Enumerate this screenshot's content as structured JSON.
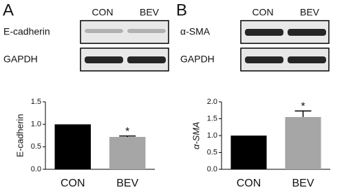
{
  "blot_panels": [
    {
      "label": "A",
      "lanes": [
        "CON",
        "BEV"
      ],
      "rows": [
        "E-cadherin",
        "GAPDH"
      ]
    },
    {
      "label": "B",
      "lanes": [
        "CON",
        "BEV"
      ],
      "rows": [
        "α-SMA",
        "GAPDH"
      ]
    }
  ],
  "chart_data": [
    {
      "type": "bar",
      "y_label": "E-cadherin",
      "categories": [
        "CON",
        "BEV"
      ],
      "values": [
        1.0,
        0.72
      ],
      "errors": [
        null,
        0.02
      ],
      "colors": [
        "#000000",
        "#a6a6a6"
      ],
      "annotations": [
        null,
        "*"
      ],
      "ylim": [
        0,
        1.5
      ],
      "yticks": [
        {
          "value": 0,
          "label": "0.0"
        },
        0.5,
        {
          "value": 1,
          "label": "1.0"
        },
        1.5
      ]
    },
    {
      "type": "bar",
      "y_label": "α-SMA",
      "categories": [
        "CON",
        "BEV"
      ],
      "values": [
        1.0,
        1.55
      ],
      "errors": [
        null,
        0.18
      ],
      "colors": [
        "#000000",
        "#a6a6a6"
      ],
      "annotations": [
        null,
        "*"
      ],
      "ylim": [
        0,
        2.0
      ],
      "yticks": [
        {
          "value": 0,
          "label": "0.0"
        },
        0.5,
        {
          "value": 1,
          "label": "1.0"
        },
        1.5,
        {
          "value": 2,
          "label": "2.0"
        }
      ]
    }
  ]
}
